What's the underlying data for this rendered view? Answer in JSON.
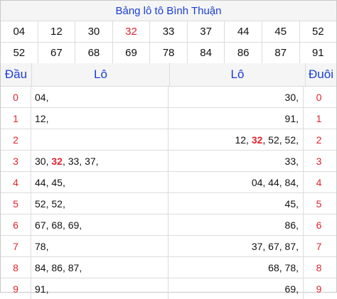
{
  "title": "Bảng lô tô Bình Thuận",
  "numbers_row1": [
    "04",
    "12",
    "30",
    "32",
    "33",
    "37",
    "44",
    "45",
    "52"
  ],
  "numbers_row2": [
    "52",
    "67",
    "68",
    "69",
    "78",
    "84",
    "86",
    "87",
    "91"
  ],
  "highlight_number": "32",
  "colors": {
    "accent_blue": "#1a3ed6",
    "highlight_red": "#e0242f",
    "header_bg": "#f5f5f5",
    "border": "#dcdcdc"
  },
  "headers": {
    "dau": "Đầu",
    "lo_left": "Lô",
    "lo_right": "Lô",
    "duoi": "Đuôi"
  },
  "rows": [
    {
      "dau": "0",
      "lo_left": [
        "04"
      ],
      "lo_right": [
        "30"
      ],
      "duoi": "0"
    },
    {
      "dau": "1",
      "lo_left": [
        "12"
      ],
      "lo_right": [
        "91"
      ],
      "duoi": "1"
    },
    {
      "dau": "2",
      "lo_left": [],
      "lo_right": [
        "12",
        "32",
        "52",
        "52"
      ],
      "duoi": "2"
    },
    {
      "dau": "3",
      "lo_left": [
        "30",
        "32",
        "33",
        "37"
      ],
      "lo_right": [
        "33"
      ],
      "duoi": "3"
    },
    {
      "dau": "4",
      "lo_left": [
        "44",
        "45"
      ],
      "lo_right": [
        "04",
        "44",
        "84"
      ],
      "duoi": "4"
    },
    {
      "dau": "5",
      "lo_left": [
        "52",
        "52"
      ],
      "lo_right": [
        "45"
      ],
      "duoi": "5"
    },
    {
      "dau": "6",
      "lo_left": [
        "67",
        "68",
        "69"
      ],
      "lo_right": [
        "86"
      ],
      "duoi": "6"
    },
    {
      "dau": "7",
      "lo_left": [
        "78"
      ],
      "lo_right": [
        "37",
        "67",
        "87"
      ],
      "duoi": "7"
    },
    {
      "dau": "8",
      "lo_left": [
        "84",
        "86",
        "87"
      ],
      "lo_right": [
        "68",
        "78"
      ],
      "duoi": "8"
    },
    {
      "dau": "9",
      "lo_left": [
        "91"
      ],
      "lo_right": [
        "69"
      ],
      "duoi": "9"
    }
  ]
}
